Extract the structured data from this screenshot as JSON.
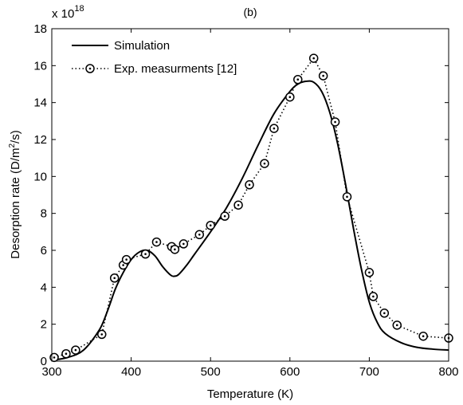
{
  "chart_data": {
    "type": "line",
    "title": "(b)",
    "xlabel": "Temperature (K)",
    "ylabel": "Desorption rate (D/m",
    "ylabel_sup": "2",
    "ylabel_tail": "/s)",
    "y_multiplier_base": "x 10",
    "y_multiplier_exp": "18",
    "xlim": [
      300,
      800
    ],
    "ylim": [
      0,
      18
    ],
    "x_ticks": [
      300,
      400,
      500,
      600,
      700,
      800
    ],
    "y_ticks": [
      0,
      2,
      4,
      6,
      8,
      10,
      12,
      14,
      16,
      18
    ],
    "grid": false,
    "legend_position": "top-left",
    "series": [
      {
        "name": "Simulation",
        "style": "solid",
        "color": "#000000",
        "x": [
          300,
          320,
          340,
          360,
          370,
          380,
          390,
          400,
          410,
          420,
          430,
          440,
          450,
          455,
          460,
          470,
          480,
          500,
          520,
          540,
          560,
          580,
          600,
          610,
          620,
          630,
          640,
          650,
          660,
          670,
          680,
          690,
          700,
          710,
          720,
          740,
          760,
          780,
          800
        ],
        "y": [
          0.05,
          0.2,
          0.6,
          1.7,
          2.7,
          3.9,
          4.8,
          5.5,
          5.9,
          6.0,
          5.7,
          5.1,
          4.65,
          4.6,
          4.7,
          5.2,
          5.8,
          7.0,
          8.3,
          9.9,
          11.7,
          13.4,
          14.6,
          15.0,
          15.15,
          15.1,
          14.6,
          13.5,
          11.8,
          9.6,
          7.2,
          5.0,
          3.2,
          2.1,
          1.5,
          1.0,
          0.75,
          0.65,
          0.6
        ]
      },
      {
        "name": "Exp. measurments [12]",
        "style": "dotted-circle",
        "color": "#000000",
        "x": [
          303,
          318,
          330,
          363,
          379,
          390,
          394,
          418,
          432,
          451,
          455,
          466,
          486,
          500,
          518,
          535,
          549,
          568,
          580,
          600,
          610,
          630,
          642,
          657,
          672,
          700,
          705,
          719,
          735,
          768,
          800
        ],
        "y": [
          0.2,
          0.4,
          0.6,
          1.45,
          4.5,
          5.2,
          5.5,
          5.8,
          6.45,
          6.2,
          6.05,
          6.35,
          6.85,
          7.35,
          7.85,
          8.45,
          9.55,
          10.7,
          12.6,
          14.3,
          15.25,
          16.4,
          15.45,
          12.95,
          8.9,
          4.8,
          3.5,
          2.6,
          1.95,
          1.35,
          1.25
        ]
      }
    ]
  }
}
